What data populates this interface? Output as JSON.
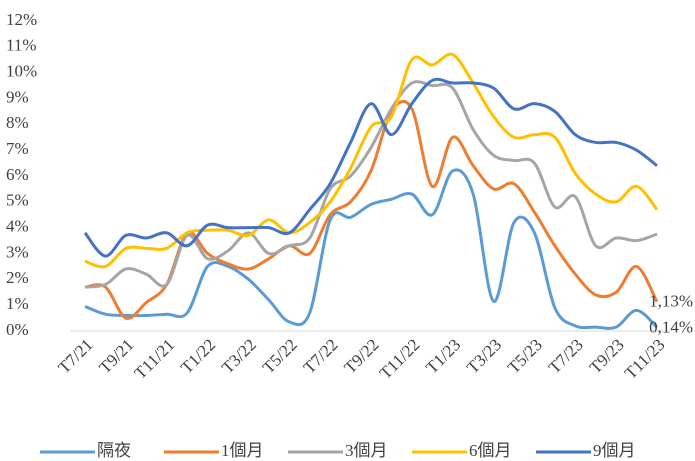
{
  "chart_data": {
    "type": "line",
    "categories": [
      "T7/21",
      null,
      "T9/21",
      null,
      "T11/21",
      null,
      "T1/22",
      null,
      "T3/22",
      null,
      "T5/22",
      null,
      "T7/22",
      null,
      "T9/22",
      null,
      "T11/22",
      null,
      "T1/23",
      null,
      "T3/23",
      null,
      "T5/23",
      null,
      "T7/23",
      null,
      "T9/23",
      null,
      "T11/23"
    ],
    "series": [
      {
        "name": "隔夜",
        "color": "#5b9bd5",
        "values": [
          0.95,
          0.65,
          0.6,
          0.6,
          0.65,
          0.7,
          2.5,
          2.5,
          2.0,
          1.2,
          0.35,
          0.7,
          4.3,
          4.4,
          4.9,
          5.1,
          5.3,
          4.5,
          6.2,
          5.3,
          1.15,
          4.2,
          3.8,
          0.9,
          0.2,
          0.15,
          0.15,
          0.8,
          0.14
        ],
        "value_labels": [
          null,
          null,
          null,
          null,
          null,
          null,
          null,
          null,
          null,
          null,
          null,
          null,
          null,
          null,
          null,
          null,
          null,
          null,
          null,
          null,
          null,
          null,
          null,
          null,
          null,
          null,
          null,
          null,
          "0,14%"
        ]
      },
      {
        "name": "1個月",
        "color": "#ed7d31",
        "values": [
          1.7,
          1.7,
          0.5,
          1.1,
          1.8,
          3.8,
          3.0,
          2.6,
          2.4,
          2.8,
          3.3,
          3.0,
          4.5,
          5.0,
          6.2,
          8.5,
          8.6,
          5.6,
          7.5,
          6.4,
          5.5,
          5.7,
          4.6,
          3.3,
          2.2,
          1.4,
          1.5,
          2.5,
          1.13
        ],
        "value_labels": [
          null,
          null,
          null,
          null,
          null,
          null,
          null,
          null,
          null,
          null,
          null,
          null,
          null,
          null,
          null,
          null,
          null,
          null,
          null,
          null,
          null,
          null,
          null,
          null,
          null,
          null,
          null,
          null,
          "1,13%"
        ]
      },
      {
        "name": "3個月",
        "color": "#a5a5a5",
        "values": [
          1.7,
          1.8,
          2.4,
          2.2,
          1.8,
          3.7,
          2.8,
          3.1,
          3.8,
          3.0,
          3.3,
          3.6,
          5.5,
          6.0,
          7.1,
          8.6,
          9.6,
          9.5,
          9.4,
          7.8,
          6.8,
          6.6,
          6.5,
          4.8,
          5.2,
          3.3,
          3.6,
          3.5,
          3.75
        ]
      },
      {
        "name": "6個月",
        "color": "#ffc000",
        "values": [
          2.7,
          2.5,
          3.2,
          3.2,
          3.2,
          3.8,
          3.9,
          3.9,
          3.7,
          4.3,
          3.8,
          4.2,
          5.0,
          6.3,
          7.9,
          8.3,
          10.5,
          10.3,
          10.7,
          9.6,
          8.3,
          7.5,
          7.6,
          7.5,
          6.1,
          5.3,
          5.0,
          5.6,
          4.7
        ]
      },
      {
        "name": "9個月",
        "color": "#4472c4",
        "values": [
          3.8,
          2.9,
          3.7,
          3.6,
          3.8,
          3.3,
          4.1,
          4.0,
          4.0,
          4.0,
          3.8,
          4.7,
          5.7,
          7.3,
          8.8,
          7.6,
          8.8,
          9.7,
          9.6,
          9.6,
          9.4,
          8.6,
          8.8,
          8.5,
          7.6,
          7.3,
          7.3,
          7.0,
          6.4
        ]
      }
    ],
    "ylim": [
      0,
      12
    ],
    "yticks": [
      {
        "value": 0,
        "label": "0%"
      },
      {
        "value": 1,
        "label": "1%"
      },
      {
        "value": 2,
        "label": "2%"
      },
      {
        "value": 3,
        "label": "3%"
      },
      {
        "value": 4,
        "label": "4%"
      },
      {
        "value": 5,
        "label": "5%"
      },
      {
        "value": 6,
        "label": "6%"
      },
      {
        "value": 7,
        "label": "7%"
      },
      {
        "value": 8,
        "label": "8%"
      },
      {
        "value": 9,
        "label": "9%"
      },
      {
        "value": 10,
        "label": "10%"
      },
      {
        "value": 11,
        "label": "11%"
      },
      {
        "value": 12,
        "label": "12%"
      }
    ],
    "grid": false,
    "legend": "bottom"
  }
}
